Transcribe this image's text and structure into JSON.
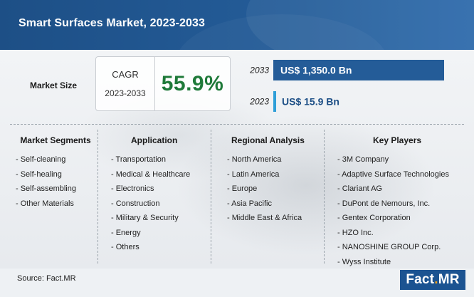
{
  "title": "Smart Surfaces Market, 2023-2033",
  "market_size_label": "Market Size",
  "cagr": {
    "label": "CAGR",
    "period": "2023-2033",
    "value": "55.9%"
  },
  "chart_data": {
    "type": "bar",
    "orientation": "horizontal",
    "categories": [
      "2033",
      "2023"
    ],
    "values": [
      1350.0,
      15.9
    ],
    "value_labels": [
      "US$ 1,350.0 Bn",
      "US$ 15.9 Bn"
    ],
    "unit": "Bn US$",
    "colors": [
      "#245c98",
      "#2f9fd8"
    ]
  },
  "columns": [
    {
      "title": "Market Segments",
      "items": [
        "- Self-cleaning",
        "- Self-healing",
        "- Self-assembling",
        "- Other Materials"
      ]
    },
    {
      "title": "Application",
      "items": [
        "- Transportation",
        "- Medical & Healthcare",
        "- Electronics",
        "- Construction",
        "- Military & Security",
        "- Energy",
        "- Others"
      ]
    },
    {
      "title": "Regional Analysis",
      "items": [
        "- North America",
        "- Latin America",
        "- Europe",
        "- Asia Pacific",
        "- Middle East & Africa"
      ]
    },
    {
      "title": "Key Players",
      "items": [
        "- 3M Company",
        "- Adaptive Surface Technologies",
        "- Clariant AG",
        "- DuPont de Nemours, Inc.",
        "- Gentex Corporation",
        "- HZO Inc.",
        "- NANOSHINE GROUP Corp.",
        "- Wyss Institute"
      ]
    }
  ],
  "source": "Source: Fact.MR",
  "logo": {
    "part1": "Fact",
    "dot": ".",
    "part2": "MR"
  },
  "colors": {
    "header": "#245c98",
    "accent_green": "#1f7a3a",
    "logo_orange": "#f3a21c"
  }
}
